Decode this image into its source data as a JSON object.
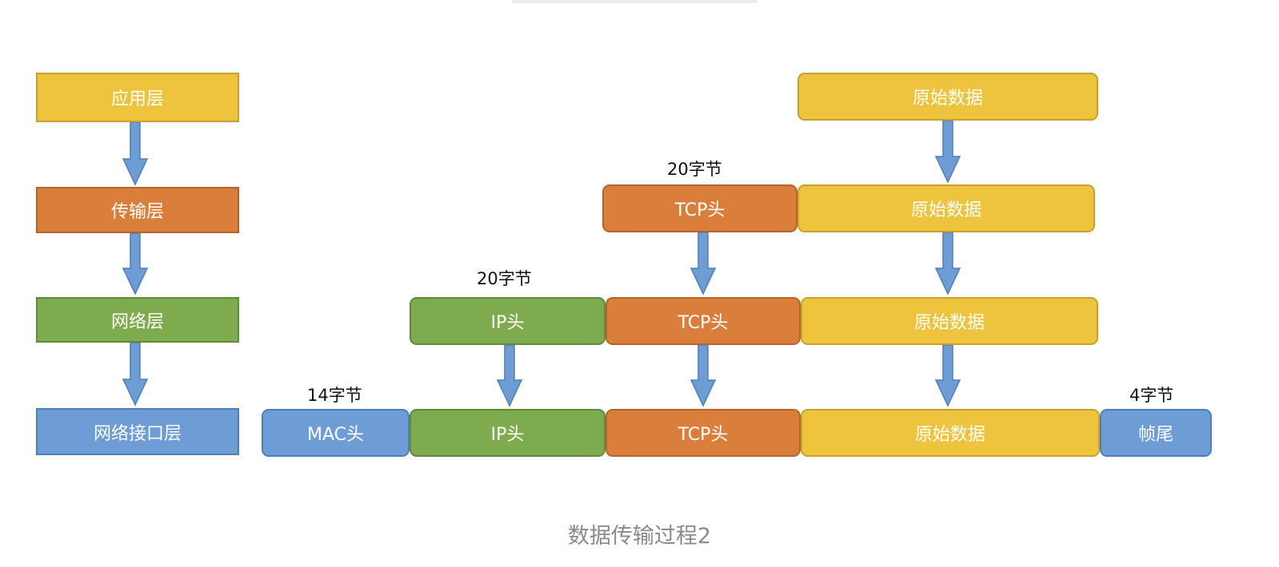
{
  "layers": {
    "app": "应用层",
    "transport": "传输层",
    "network": "网络层",
    "link": "网络接口层"
  },
  "blocks": {
    "raw_data": "原始数据",
    "tcp_header": "TCP头",
    "ip_header": "IP头",
    "mac_header": "MAC头",
    "frame_trailer": "帧尾"
  },
  "sizes": {
    "tcp_header": "20字节",
    "ip_header": "20字节",
    "mac_header": "14字节",
    "frame_trailer": "4字节"
  },
  "caption": "数据传输过程2",
  "colors": {
    "application": "#eec43f",
    "transport": "#da7e3b",
    "network": "#7fab4f",
    "link": "#6e9dd5",
    "arrow": "#6e9dd5"
  }
}
